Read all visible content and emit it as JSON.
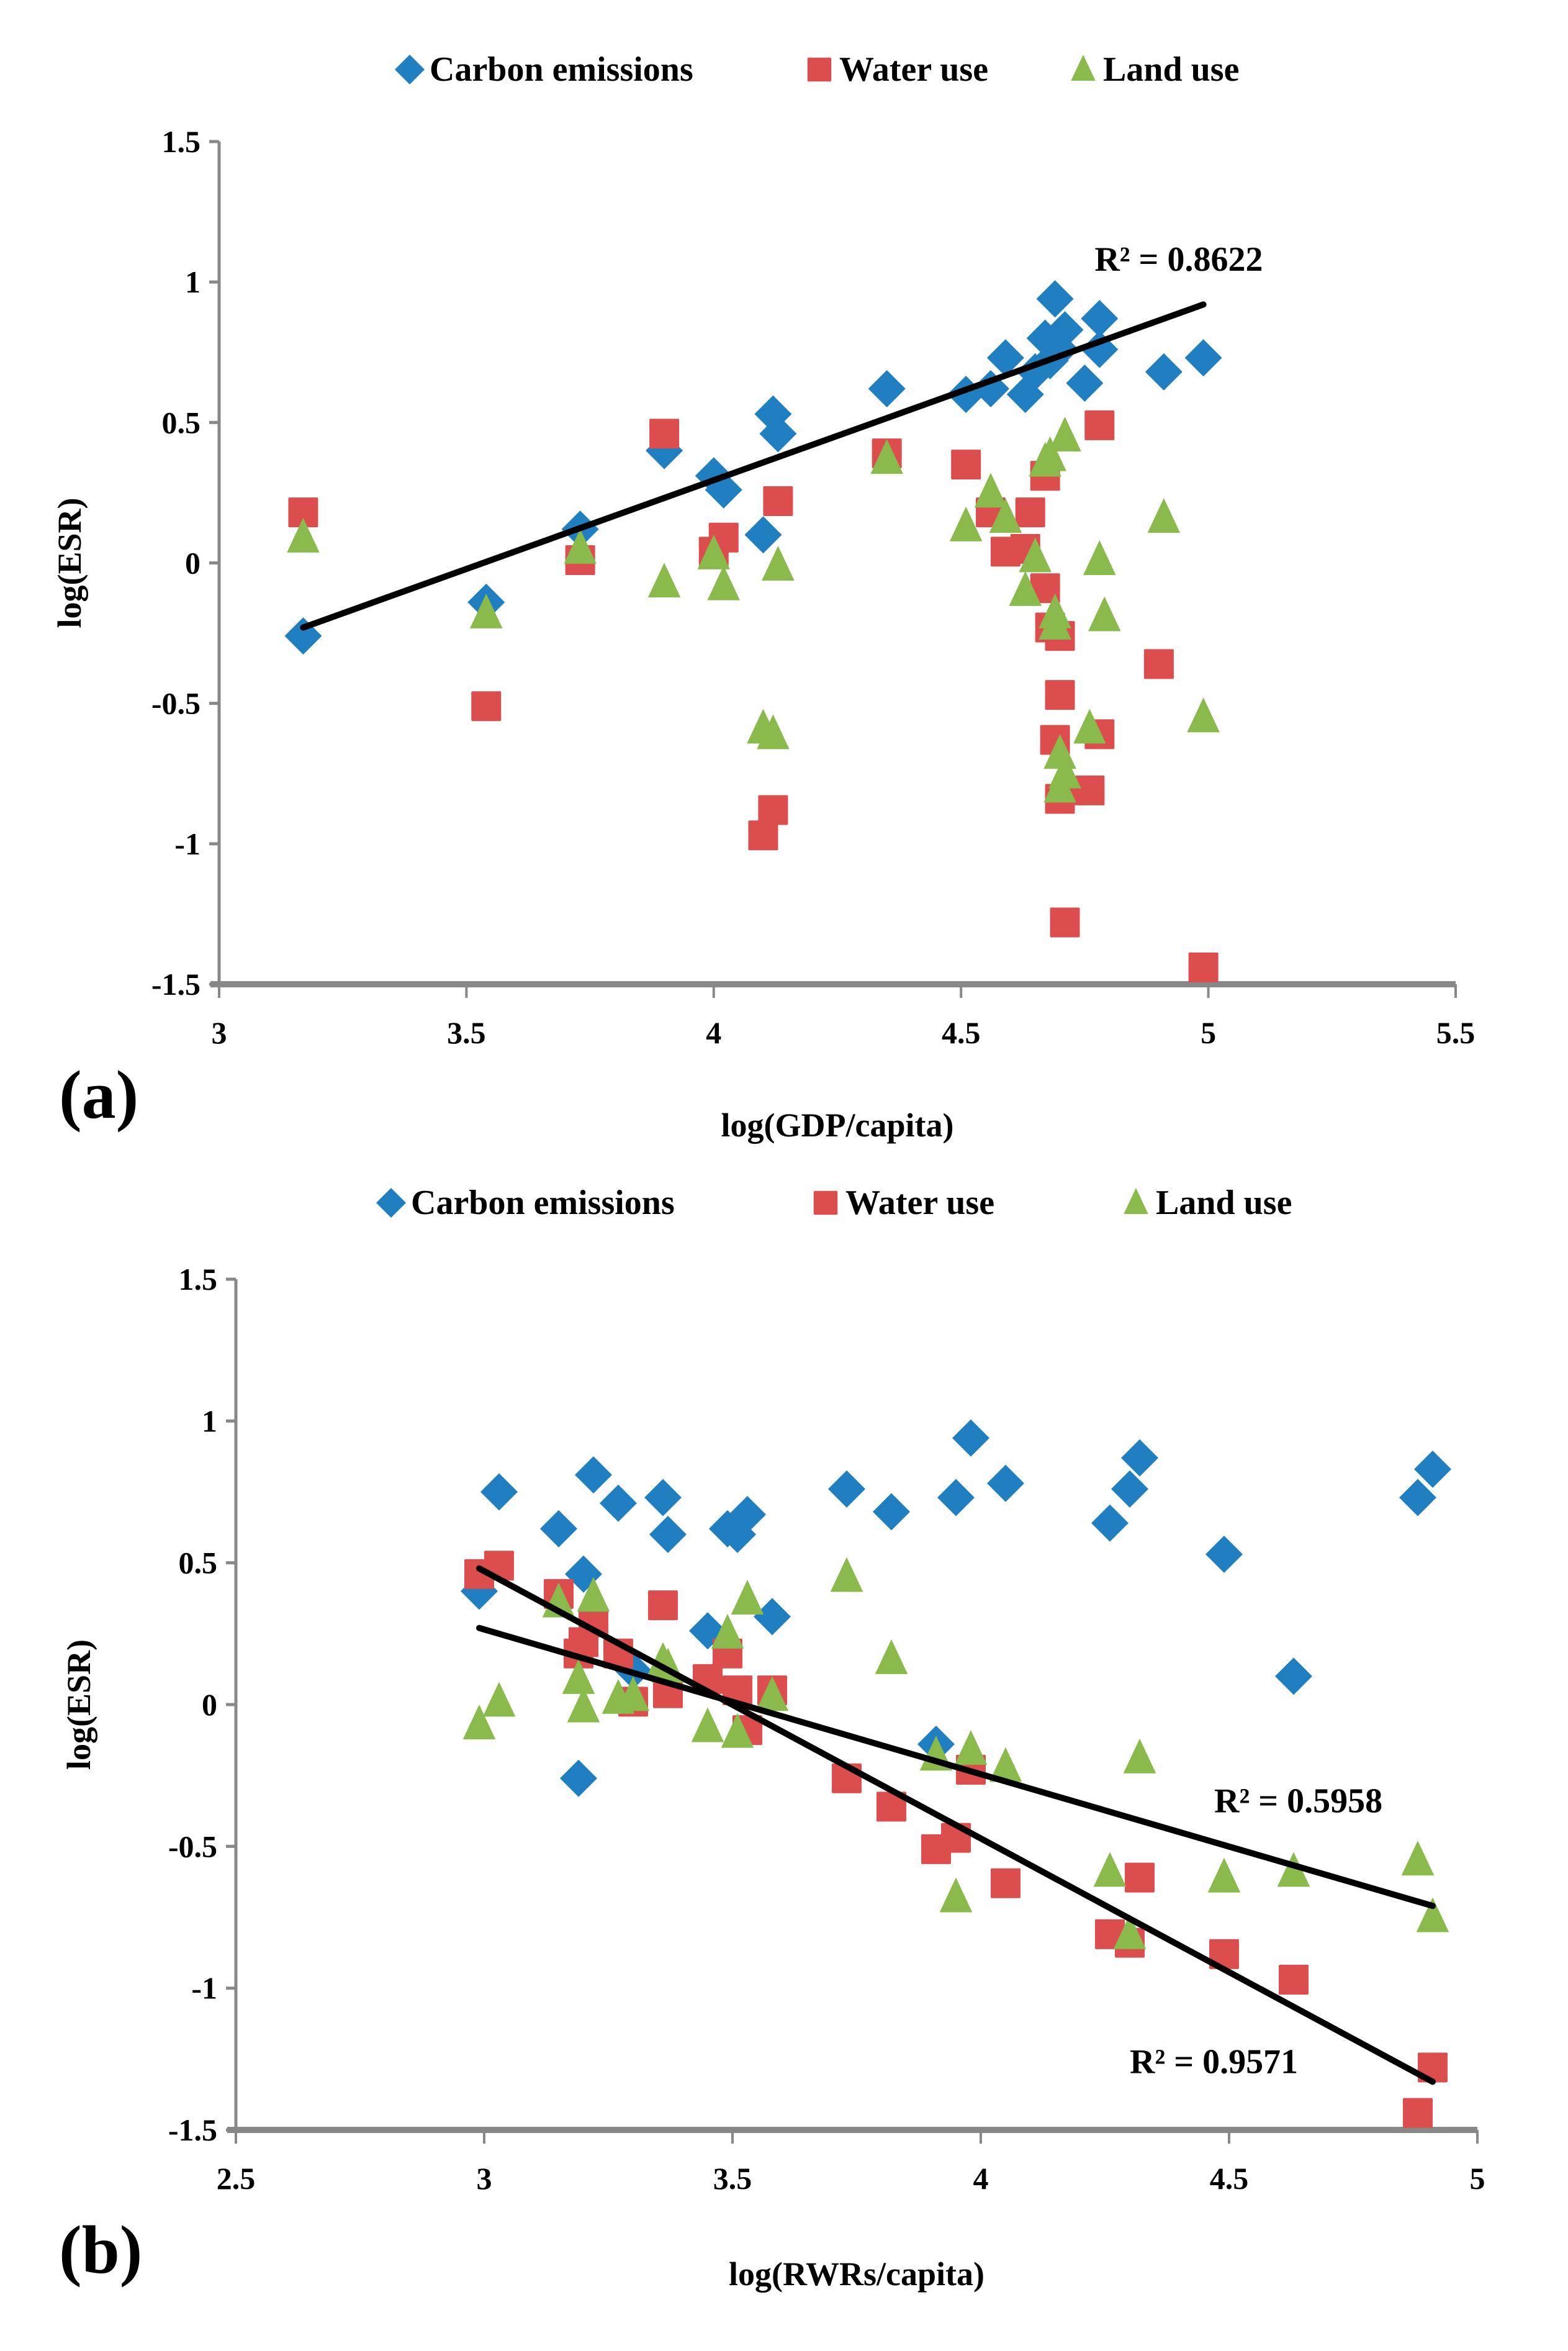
{
  "chart_data": [
    {
      "type": "scatter",
      "panel_label": "(a)",
      "xlabel": "log(GDP/capita)",
      "ylabel": "log(ESR)",
      "xlim": [
        3,
        5.5
      ],
      "ylim": [
        -1.5,
        1.5
      ],
      "xticks": [
        "3",
        "3.5",
        "4",
        "4.5",
        "5",
        "5.5"
      ],
      "yticks": [
        "1.5",
        "1",
        "0.5",
        "0",
        "-0.5",
        "-1",
        "-1.5"
      ],
      "xtick_values": [
        3,
        3.5,
        4,
        4.5,
        5,
        5.5
      ],
      "ytick_values": [
        1.5,
        1,
        0.5,
        0,
        -0.5,
        -1,
        -1.5
      ],
      "legend": [
        "Carbon emissions",
        "Water use",
        "Land use"
      ],
      "legend_position": "top-center",
      "grid": false,
      "series": [
        {
          "name": "Carbon emissions",
          "marker": "diamond",
          "color": "#1F7FC0",
          "points": [
            [
              3.17,
              -0.26
            ],
            [
              3.54,
              -0.14
            ],
            [
              3.73,
              0.12
            ],
            [
              3.9,
              0.4
            ],
            [
              4.0,
              0.31
            ],
            [
              4.02,
              0.26
            ],
            [
              4.1,
              0.1
            ],
            [
              4.12,
              0.53
            ],
            [
              4.13,
              0.46
            ],
            [
              4.35,
              0.62
            ],
            [
              4.51,
              0.6
            ],
            [
              4.56,
              0.62
            ],
            [
              4.59,
              0.73
            ],
            [
              4.63,
              0.6
            ],
            [
              4.65,
              0.68
            ],
            [
              4.67,
              0.8
            ],
            [
              4.68,
              0.72
            ],
            [
              4.69,
              0.94
            ],
            [
              4.7,
              0.76
            ],
            [
              4.71,
              0.83
            ],
            [
              4.75,
              0.64
            ],
            [
              4.78,
              0.76
            ],
            [
              4.78,
              0.87
            ],
            [
              4.91,
              0.68
            ],
            [
              4.99,
              0.73
            ]
          ]
        },
        {
          "name": "Water use",
          "marker": "square",
          "color": "#DC4E4E",
          "points": [
            [
              3.17,
              0.18
            ],
            [
              3.54,
              -0.51
            ],
            [
              3.73,
              0.01
            ],
            [
              3.9,
              0.46
            ],
            [
              4.0,
              0.04
            ],
            [
              4.02,
              0.09
            ],
            [
              4.1,
              -0.97
            ],
            [
              4.12,
              -0.88
            ],
            [
              4.13,
              0.22
            ],
            [
              4.35,
              0.39
            ],
            [
              4.51,
              0.35
            ],
            [
              4.56,
              0.18
            ],
            [
              4.59,
              0.04
            ],
            [
              4.63,
              0.05
            ],
            [
              4.64,
              0.18
            ],
            [
              4.67,
              -0.09
            ],
            [
              4.67,
              0.31
            ],
            [
              4.68,
              -0.23
            ],
            [
              4.69,
              -0.63
            ],
            [
              4.7,
              -0.26
            ],
            [
              4.7,
              -0.47
            ],
            [
              4.7,
              -0.84
            ],
            [
              4.71,
              -1.28
            ],
            [
              4.76,
              -0.81
            ],
            [
              4.78,
              -0.61
            ],
            [
              4.78,
              0.49
            ],
            [
              4.9,
              -0.36
            ],
            [
              4.99,
              -1.44
            ]
          ]
        },
        {
          "name": "Land use",
          "marker": "triangle",
          "color": "#8AB94C",
          "points": [
            [
              3.17,
              0.09
            ],
            [
              3.54,
              -0.18
            ],
            [
              3.73,
              0.05
            ],
            [
              3.9,
              -0.07
            ],
            [
              4.0,
              0.03
            ],
            [
              4.02,
              -0.08
            ],
            [
              4.1,
              -0.59
            ],
            [
              4.12,
              -0.61
            ],
            [
              4.13,
              -0.01
            ],
            [
              4.35,
              0.37
            ],
            [
              4.51,
              0.13
            ],
            [
              4.56,
              0.25
            ],
            [
              4.59,
              0.16
            ],
            [
              4.63,
              -0.1
            ],
            [
              4.65,
              0.02
            ],
            [
              4.67,
              0.36
            ],
            [
              4.68,
              0.38
            ],
            [
              4.69,
              -0.18
            ],
            [
              4.69,
              -0.22
            ],
            [
              4.7,
              -0.68
            ],
            [
              4.7,
              -0.8
            ],
            [
              4.71,
              -0.75
            ],
            [
              4.71,
              0.45
            ],
            [
              4.76,
              -0.59
            ],
            [
              4.78,
              0.01
            ],
            [
              4.79,
              -0.19
            ],
            [
              4.91,
              0.16
            ],
            [
              4.99,
              -0.55
            ]
          ]
        }
      ],
      "trendlines": [
        {
          "series": "Carbon emissions",
          "x": [
            3.17,
            4.99
          ],
          "y": [
            -0.23,
            0.92
          ],
          "r2_label": "R² = 0.8622",
          "label_anchor": [
            4.77,
            1.04
          ]
        }
      ]
    },
    {
      "type": "scatter",
      "panel_label": "(b)",
      "xlabel": "log(RWRs/capita)",
      "ylabel": "log(ESR)",
      "xlim": [
        2.5,
        5
      ],
      "ylim": [
        -1.5,
        1.5
      ],
      "xticks": [
        "2.5",
        "3",
        "3.5",
        "4",
        "4.5",
        "5"
      ],
      "yticks": [
        "1.5",
        "1",
        "0.5",
        "0",
        "-0.5",
        "-1",
        "-1.5"
      ],
      "xtick_values": [
        2.5,
        3,
        3.5,
        4,
        4.5,
        5
      ],
      "ytick_values": [
        1.5,
        1,
        0.5,
        0,
        -0.5,
        -1,
        -1.5
      ],
      "legend": [
        "Carbon emissions",
        "Water use",
        "Land use"
      ],
      "legend_position": "top-center",
      "grid": false,
      "series": [
        {
          "name": "Carbon emissions",
          "marker": "diamond",
          "color": "#1F7FC0",
          "points": [
            [
              2.99,
              0.4
            ],
            [
              3.03,
              0.75
            ],
            [
              3.15,
              0.62
            ],
            [
              3.19,
              -0.26
            ],
            [
              3.2,
              0.46
            ],
            [
              3.22,
              0.81
            ],
            [
              3.27,
              0.71
            ],
            [
              3.3,
              0.12
            ],
            [
              3.36,
              0.73
            ],
            [
              3.37,
              0.6
            ],
            [
              3.45,
              0.26
            ],
            [
              3.49,
              0.62
            ],
            [
              3.51,
              0.6
            ],
            [
              3.53,
              0.67
            ],
            [
              3.58,
              0.31
            ],
            [
              3.73,
              0.76
            ],
            [
              3.82,
              0.68
            ],
            [
              3.91,
              -0.14
            ],
            [
              3.95,
              0.73
            ],
            [
              3.98,
              0.94
            ],
            [
              4.05,
              0.78
            ],
            [
              4.26,
              0.64
            ],
            [
              4.3,
              0.76
            ],
            [
              4.32,
              0.87
            ],
            [
              4.49,
              0.53
            ],
            [
              4.63,
              0.1
            ],
            [
              4.88,
              0.73
            ],
            [
              4.91,
              0.83
            ]
          ]
        },
        {
          "name": "Water use",
          "marker": "square",
          "color": "#DC4E4E",
          "points": [
            [
              2.99,
              0.46
            ],
            [
              3.03,
              0.49
            ],
            [
              3.15,
              0.39
            ],
            [
              3.19,
              0.18
            ],
            [
              3.2,
              0.22
            ],
            [
              3.22,
              0.29
            ],
            [
              3.27,
              0.18
            ],
            [
              3.3,
              0.01
            ],
            [
              3.36,
              0.35
            ],
            [
              3.37,
              0.04
            ],
            [
              3.45,
              0.09
            ],
            [
              3.49,
              0.18
            ],
            [
              3.51,
              0.05
            ],
            [
              3.53,
              -0.09
            ],
            [
              3.58,
              0.05
            ],
            [
              3.73,
              -0.26
            ],
            [
              3.82,
              -0.36
            ],
            [
              3.91,
              -0.51
            ],
            [
              3.95,
              -0.47
            ],
            [
              3.98,
              -0.23
            ],
            [
              4.05,
              -0.63
            ],
            [
              4.26,
              -0.81
            ],
            [
              4.3,
              -0.84
            ],
            [
              4.32,
              -0.61
            ],
            [
              4.49,
              -0.88
            ],
            [
              4.63,
              -0.97
            ],
            [
              4.88,
              -1.44
            ],
            [
              4.91,
              -1.28
            ]
          ]
        },
        {
          "name": "Land use",
          "marker": "triangle",
          "color": "#8AB94C",
          "points": [
            [
              2.99,
              -0.07
            ],
            [
              3.03,
              0.01
            ],
            [
              3.15,
              0.36
            ],
            [
              3.19,
              0.09
            ],
            [
              3.2,
              -0.01
            ],
            [
              3.22,
              0.38
            ],
            [
              3.27,
              0.02
            ],
            [
              3.3,
              0.03
            ],
            [
              3.36,
              0.15
            ],
            [
              3.37,
              0.13
            ],
            [
              3.45,
              -0.08
            ],
            [
              3.49,
              0.25
            ],
            [
              3.51,
              -0.1
            ],
            [
              3.53,
              0.37
            ],
            [
              3.58,
              0.03
            ],
            [
              3.73,
              0.45
            ],
            [
              3.82,
              0.16
            ],
            [
              3.91,
              -0.18
            ],
            [
              3.95,
              -0.68
            ],
            [
              3.98,
              -0.16
            ],
            [
              4.05,
              -0.22
            ],
            [
              4.26,
              -0.59
            ],
            [
              4.3,
              -0.81
            ],
            [
              4.32,
              -0.19
            ],
            [
              4.49,
              -0.61
            ],
            [
              4.63,
              -0.59
            ],
            [
              4.88,
              -0.55
            ],
            [
              4.91,
              -0.75
            ]
          ]
        }
      ],
      "trendlines": [
        {
          "series": "Water use",
          "x": [
            2.99,
            4.91
          ],
          "y": [
            0.48,
            -1.33
          ],
          "r2_label": "R² = 0.9571",
          "label_anchor": [
            4.3,
            -1.3
          ]
        },
        {
          "series": "Land use",
          "x": [
            2.99,
            4.91
          ],
          "y": [
            0.27,
            -0.71
          ],
          "r2_label": "R² = 0.5958",
          "label_anchor": [
            4.47,
            -0.38
          ]
        }
      ]
    }
  ]
}
